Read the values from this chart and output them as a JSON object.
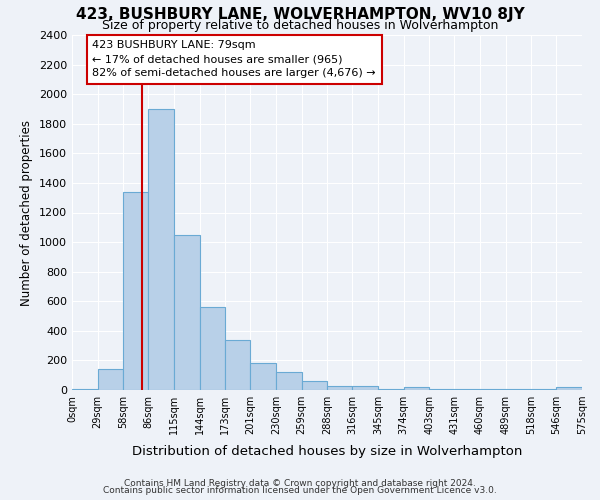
{
  "title": "423, BUSHBURY LANE, WOLVERHAMPTON, WV10 8JY",
  "subtitle": "Size of property relative to detached houses in Wolverhampton",
  "xlabel": "Distribution of detached houses by size in Wolverhampton",
  "ylabel": "Number of detached properties",
  "bar_color": "#b8d0e8",
  "bar_edge_color": "#6aaad4",
  "background_color": "#eef2f8",
  "grid_color": "#ffffff",
  "bin_edges": [
    0,
    29,
    58,
    86,
    115,
    144,
    173,
    201,
    230,
    259,
    288,
    316,
    345,
    374,
    403,
    431,
    460,
    489,
    518,
    546,
    575
  ],
  "bin_labels": [
    "0sqm",
    "29sqm",
    "58sqm",
    "86sqm",
    "115sqm",
    "144sqm",
    "173sqm",
    "201sqm",
    "230sqm",
    "259sqm",
    "288sqm",
    "316sqm",
    "345sqm",
    "374sqm",
    "403sqm",
    "431sqm",
    "460sqm",
    "489sqm",
    "518sqm",
    "546sqm",
    "575sqm"
  ],
  "bar_heights": [
    5,
    140,
    1340,
    1900,
    1050,
    560,
    340,
    185,
    120,
    60,
    30,
    25,
    5,
    20,
    5,
    5,
    5,
    8,
    5,
    20
  ],
  "ylim": [
    0,
    2400
  ],
  "yticks": [
    0,
    200,
    400,
    600,
    800,
    1000,
    1200,
    1400,
    1600,
    1800,
    2000,
    2200,
    2400
  ],
  "vline_x": 79,
  "vline_color": "#cc0000",
  "annotation_line1": "423 BUSHBURY LANE: 79sqm",
  "annotation_line2": "← 17% of detached houses are smaller (965)",
  "annotation_line3": "82% of semi-detached houses are larger (4,676) →",
  "annotation_box_edge": "#cc0000",
  "annotation_box_face": "#ffffff",
  "footer1": "Contains HM Land Registry data © Crown copyright and database right 2024.",
  "footer2": "Contains public sector information licensed under the Open Government Licence v3.0."
}
